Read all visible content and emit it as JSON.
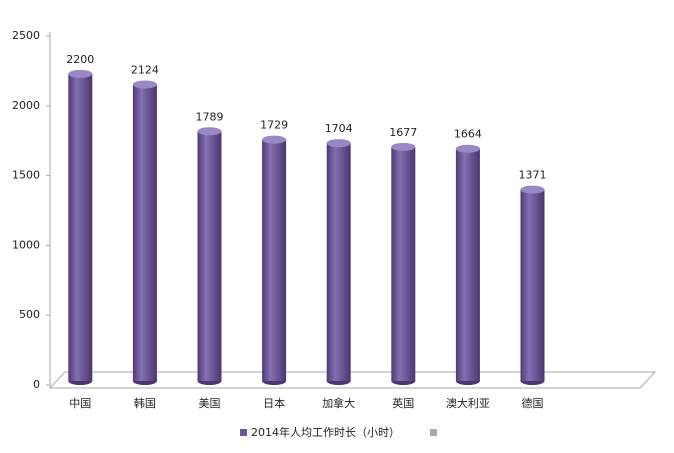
{
  "chart_data": {
    "type": "bar",
    "categories": [
      "中国",
      "韩国",
      "美国",
      "日本",
      "加拿大",
      "英国",
      "澳大利亚",
      "德国"
    ],
    "series": [
      {
        "name": "2014年人均工作时长（小时）",
        "color": "#6a5494",
        "values": [
          2200,
          2124,
          1789,
          1729,
          1704,
          1677,
          1664,
          1371
        ]
      }
    ],
    "ylim": [
      0,
      2500
    ],
    "yticks": [
      0,
      500,
      1000,
      1500,
      2000,
      2500
    ]
  }
}
